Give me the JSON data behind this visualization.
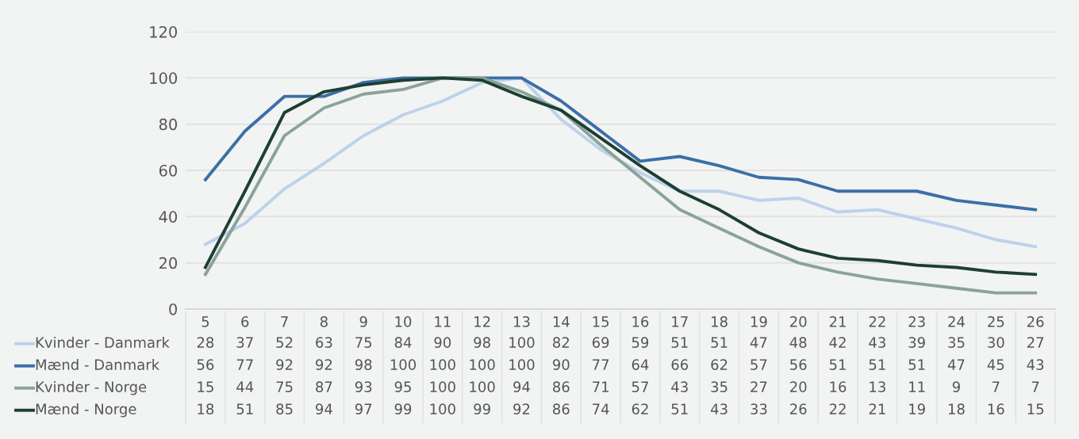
{
  "chart_data": {
    "type": "line",
    "categories": [
      "5",
      "6",
      "7",
      "8",
      "9",
      "10",
      "11",
      "12",
      "13",
      "14",
      "15",
      "16",
      "17",
      "18",
      "19",
      "20",
      "21",
      "22",
      "23",
      "24",
      "25",
      "26"
    ],
    "series": [
      {
        "name": "Kvinder - Danmark",
        "color": "#bcd2ea",
        "values": [
          28,
          37,
          52,
          63,
          75,
          84,
          90,
          98,
          100,
          82,
          69,
          59,
          51,
          51,
          47,
          48,
          42,
          43,
          39,
          35,
          30,
          27
        ]
      },
      {
        "name": "Mænd - Danmark",
        "color": "#3b6fa6",
        "values": [
          56,
          77,
          92,
          92,
          98,
          100,
          100,
          100,
          100,
          90,
          77,
          64,
          66,
          62,
          57,
          56,
          51,
          51,
          51,
          47,
          45,
          43
        ]
      },
      {
        "name": "Kvinder - Norge",
        "color": "#8aa398",
        "values": [
          15,
          44,
          75,
          87,
          93,
          95,
          100,
          100,
          94,
          86,
          71,
          57,
          43,
          35,
          27,
          20,
          16,
          13,
          11,
          9,
          7,
          7
        ]
      },
      {
        "name": "Mænd - Norge",
        "color": "#1d3f33",
        "values": [
          18,
          51,
          85,
          94,
          97,
          99,
          100,
          99,
          92,
          86,
          74,
          62,
          51,
          43,
          33,
          26,
          22,
          21,
          19,
          18,
          16,
          15
        ]
      }
    ],
    "ylim": [
      0,
      120
    ],
    "yticks": [
      0,
      20,
      40,
      60,
      80,
      100,
      120
    ],
    "grid": "y",
    "legend": "bottom",
    "data_labels": true
  }
}
